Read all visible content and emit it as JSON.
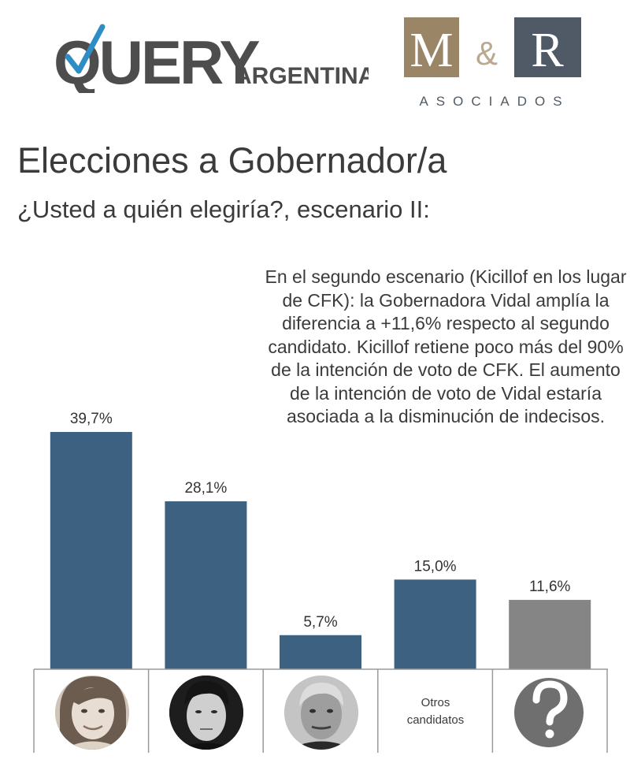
{
  "logos": {
    "query_word": "QUERY",
    "query_sub": "ARGENTINA",
    "mr_left": "M",
    "mr_amp": "&",
    "mr_right": "R",
    "mr_sub": "ASOCIADOS",
    "colors": {
      "query_gray": "#4d4d4d",
      "query_check": "#2f8dc6",
      "mr_gold": "#9a8567",
      "mr_slate": "#4f5a66",
      "mr_amp": "#b9a98f"
    }
  },
  "title": "Elecciones a Gobernador/a",
  "subtitle": "¿Usted a quién elegiría?, escenario II:",
  "note": "En el segundo escenario (Kicillof en los lugar de CFK): la Gobernadora Vidal amplía la diferencia a +11,6% respecto al segundo candidato. Kicillof retiene poco más del 90% de la intención de voto de CFK. El aumento de la intención de voto de Vidal estaría asociada a la disminución de indecisos.",
  "chart_data": {
    "type": "bar",
    "categories": [
      "candidate-photo-1",
      "candidate-photo-2",
      "candidate-photo-3",
      "Otros candidatos",
      "question-mark-icon"
    ],
    "values": [
      39.7,
      28.1,
      5.7,
      15.0,
      11.6
    ],
    "value_labels": [
      "39,7%",
      "28,1%",
      "5,7%",
      "15,0%",
      "11,6%"
    ],
    "colors": [
      "#3c6181",
      "#3c6181",
      "#3c6181",
      "#3c6181",
      "#858585"
    ],
    "ylim": [
      0,
      39.7
    ],
    "grid": false,
    "legend": "none"
  },
  "category_labels": {
    "otros_line1": "Otros",
    "otros_line2": "candidatos"
  }
}
